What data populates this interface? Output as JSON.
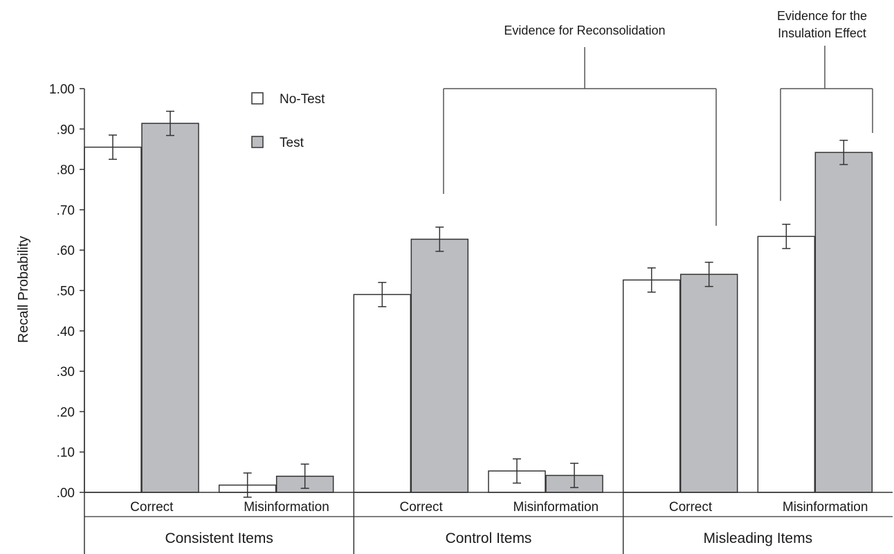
{
  "chart_data": {
    "type": "bar",
    "ylabel": "Recall Probability",
    "ylim": [
      0,
      1.0
    ],
    "y_ticks": [
      ".00",
      ".10",
      ".20",
      ".30",
      ".40",
      ".50",
      ".60",
      ".70",
      ".80",
      ".90",
      "1.00"
    ],
    "groups": [
      {
        "label": "Consistent Items",
        "categories": [
          "Correct",
          "Misinformation"
        ]
      },
      {
        "label": "Control Items",
        "categories": [
          "Correct",
          "Misinformation"
        ]
      },
      {
        "label": "Misleading Items",
        "categories": [
          "Correct",
          "Misinformation"
        ]
      }
    ],
    "series": [
      {
        "name": "No-Test",
        "color": "#ffffff",
        "values": [
          0.855,
          0.018,
          0.49,
          0.053,
          0.526,
          0.634
        ],
        "errors": [
          0.03,
          0.03,
          0.03,
          0.03,
          0.03,
          0.03
        ]
      },
      {
        "name": "Test",
        "color": "#bcbdc0",
        "values": [
          0.914,
          0.04,
          0.627,
          0.042,
          0.54,
          0.842
        ],
        "errors": [
          0.03,
          0.03,
          0.03,
          0.03,
          0.03,
          0.03
        ]
      }
    ],
    "legend": {
      "position": "top-left"
    },
    "annotations": [
      {
        "text": "Evidence for Reconsolidation"
      },
      {
        "text_lines": [
          "Evidence for the",
          "Insulation Effect"
        ]
      }
    ],
    "grid": false
  }
}
